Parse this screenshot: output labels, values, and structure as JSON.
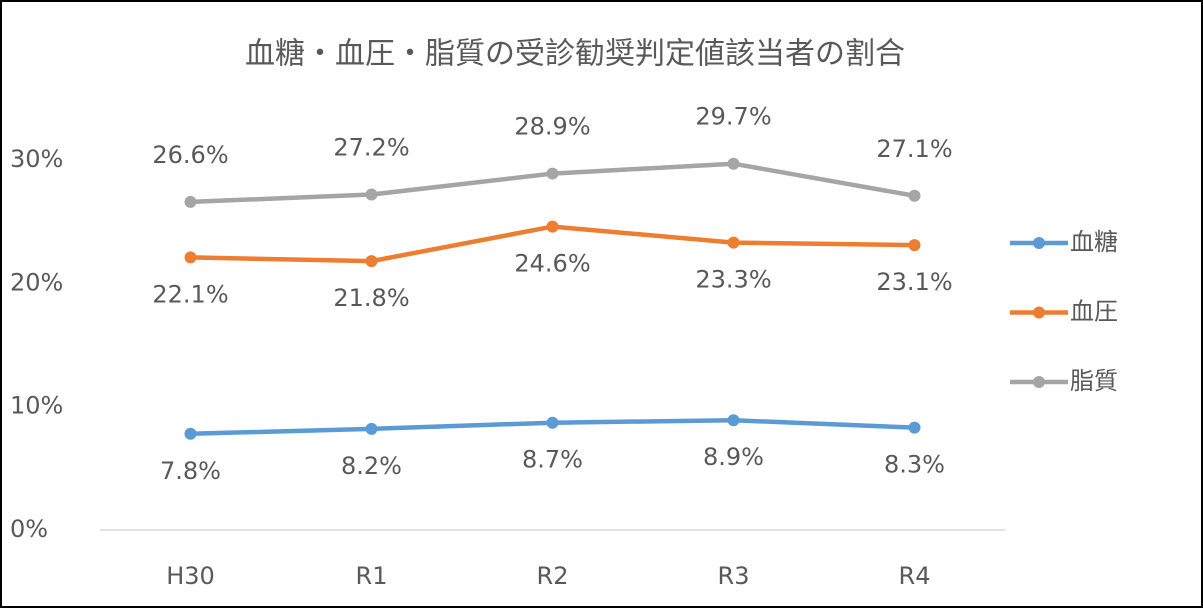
{
  "chart_data": {
    "type": "line",
    "title": "血糖・血圧・脂質の受診勧奨判定値該当者の割合",
    "categories": [
      "H30",
      "R1",
      "R2",
      "R3",
      "R4"
    ],
    "series": [
      {
        "name": "血糖",
        "color": "#5b9bd5",
        "values": [
          7.8,
          8.2,
          8.7,
          8.9,
          8.3
        ],
        "value_labels": [
          "7.8%",
          "8.2%",
          "8.7%",
          "8.9%",
          "8.3%"
        ]
      },
      {
        "name": "血圧",
        "color": "#ed7d31",
        "values": [
          22.1,
          21.8,
          24.6,
          23.3,
          23.1
        ],
        "value_labels": [
          "22.1%",
          "21.8%",
          "24.6%",
          "23.3%",
          "23.1%"
        ]
      },
      {
        "name": "脂質",
        "color": "#a5a5a5",
        "values": [
          26.6,
          27.2,
          28.9,
          29.7,
          27.1
        ],
        "value_labels": [
          "26.6%",
          "27.2%",
          "28.9%",
          "29.7%",
          "27.1%"
        ]
      }
    ],
    "ylim": [
      0,
      30
    ],
    "yticks": [
      {
        "value": 0,
        "label": "0%"
      },
      {
        "value": 10,
        "label": "10%"
      },
      {
        "value": 20,
        "label": "20%"
      },
      {
        "value": 30,
        "label": "30%"
      }
    ],
    "grid": false,
    "legend": "right"
  }
}
